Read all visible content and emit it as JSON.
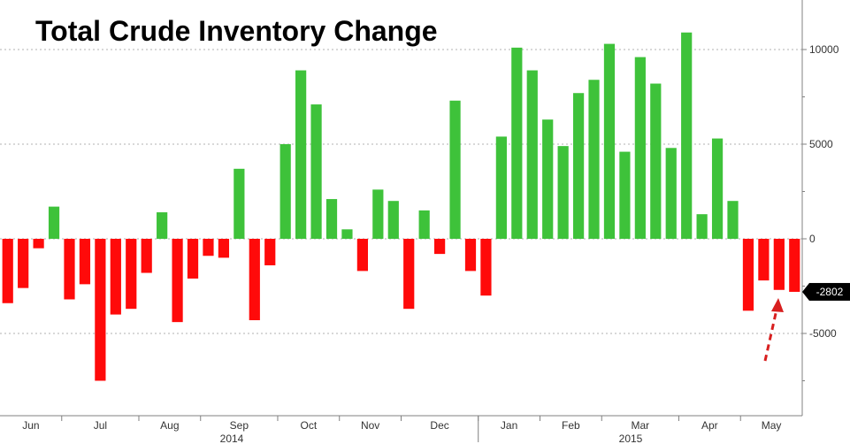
{
  "chart_data": {
    "type": "bar",
    "title": "Total Crude Inventory Change",
    "xlabel": "",
    "ylabel": "",
    "ylim": [
      -9300,
      12500
    ],
    "yticks": [
      -5000,
      0,
      5000,
      10000
    ],
    "ytick_labels": [
      "-5000",
      "0",
      "5000",
      "10000"
    ],
    "month_labels": [
      "Jun",
      "Jul",
      "Aug",
      "Sep",
      "Oct",
      "Nov",
      "Dec",
      "Jan",
      "Feb",
      "Mar",
      "Apr",
      "May"
    ],
    "year_labels": [
      "2014",
      "2015"
    ],
    "last_value_label": "-2802",
    "positive_color": "#3ec23a",
    "negative_color": "#ff0a0a",
    "arrow_color": "#d81f1f",
    "values": [
      -3400,
      -2600,
      -500,
      1700,
      -3200,
      -2400,
      -7500,
      -4000,
      -3700,
      -1800,
      1400,
      -4400,
      -2100,
      -900,
      -1000,
      3700,
      -4300,
      -1400,
      5000,
      8900,
      7100,
      2100,
      500,
      -1700,
      2600,
      2000,
      -3700,
      1500,
      -800,
      7300,
      -1700,
      -3000,
      5400,
      10100,
      8900,
      6300,
      4900,
      7700,
      8400,
      10300,
      4600,
      9600,
      8200,
      4800,
      10900,
      1300,
      5300,
      2000,
      -3800,
      -2200,
      -2700,
      -2802
    ]
  }
}
